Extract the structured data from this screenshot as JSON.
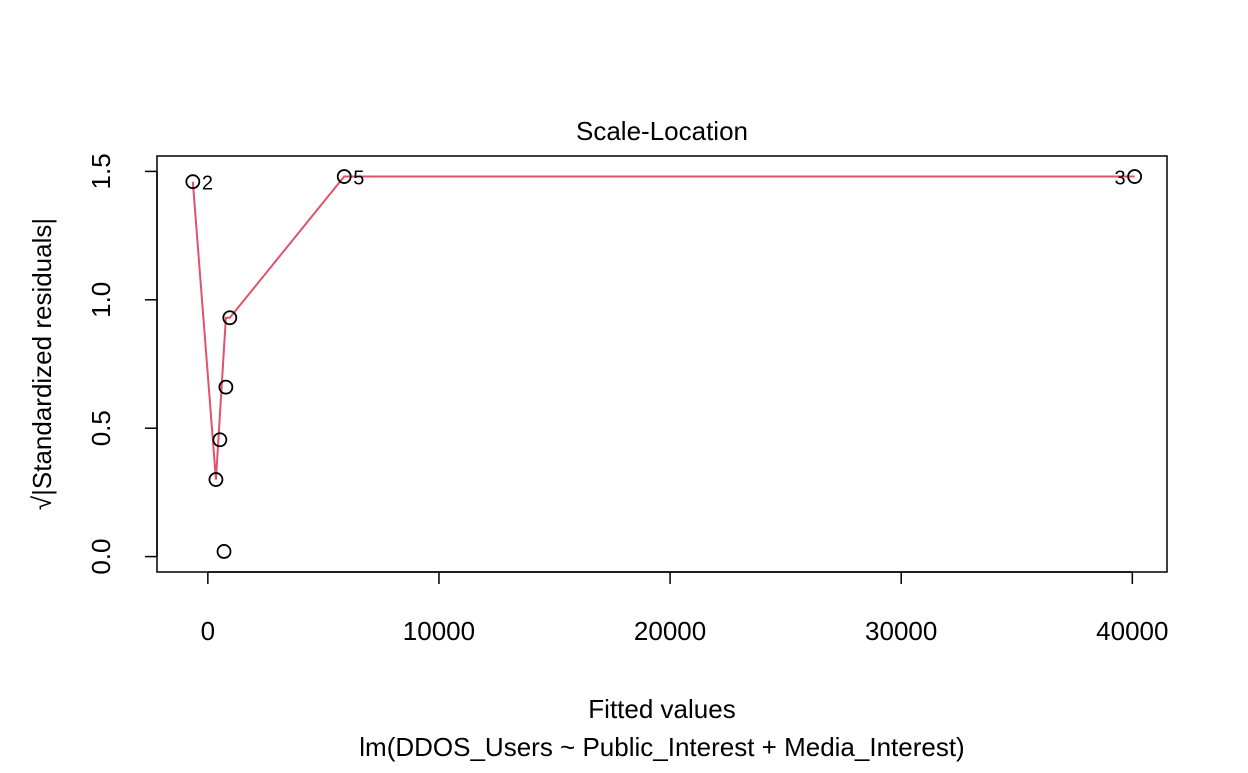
{
  "chart_data": {
    "type": "scatter",
    "title": "Scale-Location",
    "xlabel": "Fitted values",
    "ylabel": "√|Standardized residuals|",
    "subtitle": "lm(DDOS_Users ~ Public_Interest + Media_Interest)",
    "x_ticks": [
      0,
      10000,
      20000,
      30000,
      40000
    ],
    "x_tick_labels": [
      "0",
      "10000",
      "20000",
      "30000",
      "40000"
    ],
    "y_ticks": [
      0.0,
      0.5,
      1.0,
      1.5
    ],
    "y_tick_labels": [
      "0.0",
      "0.5",
      "1.0",
      "1.5"
    ],
    "xlim": [
      -2200,
      41500
    ],
    "ylim": [
      -0.06,
      1.56
    ],
    "grid": false,
    "legend": "none",
    "points": [
      {
        "x": -650,
        "y": 1.46,
        "label": "2",
        "label_pos": "right"
      },
      {
        "x": 350,
        "y": 0.3,
        "label": ""
      },
      {
        "x": 520,
        "y": 0.455,
        "label": ""
      },
      {
        "x": 700,
        "y": 0.02,
        "label": ""
      },
      {
        "x": 780,
        "y": 0.66,
        "label": ""
      },
      {
        "x": 950,
        "y": 0.93,
        "label": ""
      },
      {
        "x": 5900,
        "y": 1.48,
        "label": "5",
        "label_pos": "right"
      },
      {
        "x": 40100,
        "y": 1.48,
        "label": "3",
        "label_pos": "left"
      }
    ],
    "smooth_line": {
      "color": "#df536b",
      "x": [
        -650,
        350,
        780,
        950,
        5900,
        40100
      ],
      "y": [
        1.46,
        0.3,
        0.93,
        0.93,
        1.48,
        1.48
      ]
    },
    "colors": {
      "points": "#000000",
      "axis": "#000000",
      "smooth": "#df536b"
    }
  }
}
